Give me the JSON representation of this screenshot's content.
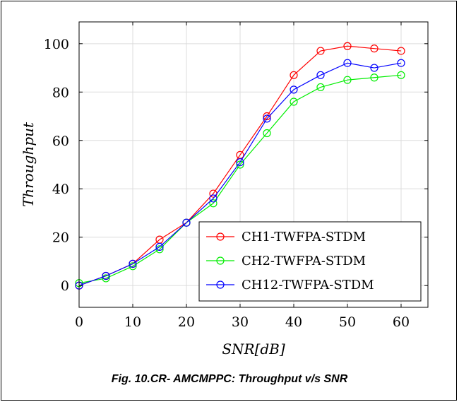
{
  "caption": "Fig. 10.CR- AMCMPPC: Throughput v/s SNR",
  "chart_data": {
    "type": "line",
    "xlabel": "SNR[dB]",
    "ylabel": "Throughput",
    "xlim": [
      0,
      65
    ],
    "ylim": [
      -9,
      109
    ],
    "xticks": [
      0,
      10,
      20,
      30,
      40,
      50,
      60
    ],
    "yticks": [
      0,
      20,
      40,
      60,
      80,
      100
    ],
    "grid": true,
    "legend_position": "bottom-right",
    "x": [
      0,
      5,
      10,
      15,
      20,
      25,
      30,
      35,
      40,
      45,
      50,
      55,
      60
    ],
    "series": [
      {
        "name": "CH1-TWFPA-STDM",
        "color": "#ff0000",
        "values": [
          0,
          4,
          9,
          19,
          26,
          38,
          54,
          70,
          87,
          97,
          99,
          98,
          97
        ]
      },
      {
        "name": "CH2-TWFPA-STDM",
        "color": "#00ee00",
        "values": [
          1,
          3,
          8,
          15,
          26,
          34,
          50,
          63,
          76,
          82,
          85,
          86,
          87
        ]
      },
      {
        "name": "CH12-TWFPA-STDM",
        "color": "#0000ff",
        "values": [
          0,
          4,
          9,
          16,
          26,
          36,
          51,
          69,
          81,
          87,
          92,
          90,
          92
        ]
      }
    ]
  }
}
